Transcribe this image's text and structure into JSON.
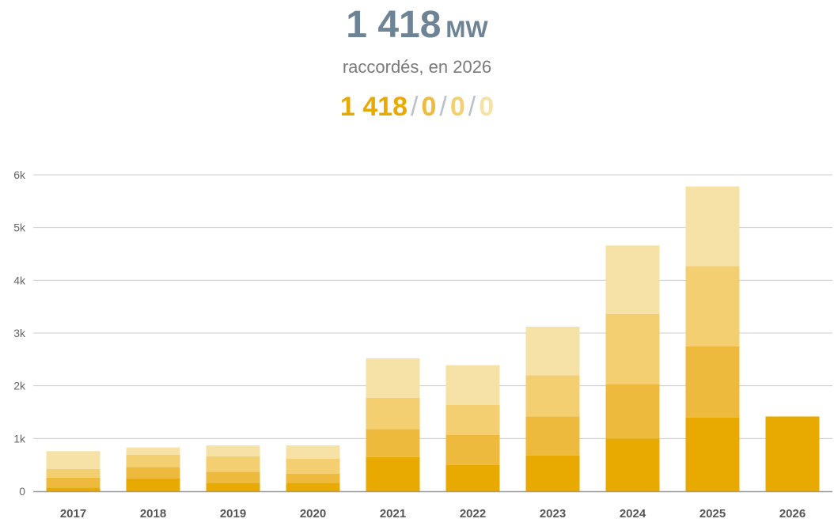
{
  "header": {
    "total_value": "1 418",
    "total_unit": "MW",
    "subtitle": "raccordés, en 2026",
    "quarter_values": [
      "1 418",
      "0",
      "0",
      "0"
    ],
    "separator": "/"
  },
  "colors": {
    "total": "#6d8396",
    "q1": "#e8a900",
    "q2": "#eeba3e",
    "q3": "#f3cf72",
    "q4": "#f6e1a6",
    "grid": "#cccccc",
    "axis": "#9a9a9a"
  },
  "chart_data": {
    "type": "bar",
    "stacked": true,
    "categories": [
      "2017",
      "2018",
      "2019",
      "2020",
      "2021",
      "2022",
      "2023",
      "2024",
      "2025",
      "2026"
    ],
    "series": [
      {
        "values": [
          70,
          240,
          150,
          160,
          650,
          500,
          680,
          1000,
          1400,
          1418
        ]
      },
      {
        "values": [
          190,
          220,
          220,
          170,
          530,
          570,
          740,
          1030,
          1350,
          0
        ]
      },
      {
        "values": [
          160,
          230,
          290,
          290,
          590,
          570,
          780,
          1330,
          1520,
          0
        ]
      },
      {
        "values": [
          340,
          140,
          210,
          250,
          750,
          750,
          920,
          1300,
          1510,
          0
        ]
      }
    ],
    "ylim": [
      0,
      6000
    ],
    "yticks": [
      0,
      1000,
      2000,
      3000,
      4000,
      5000,
      6000
    ],
    "ytick_labels": [
      "0",
      "1k",
      "2k",
      "3k",
      "4k",
      "5k",
      "6k"
    ],
    "grid": true
  }
}
